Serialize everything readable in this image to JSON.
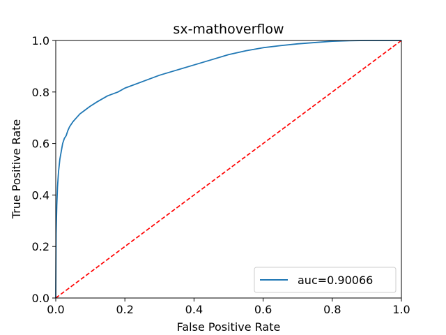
{
  "chart_data": {
    "type": "line",
    "title": "sx-mathoverflow",
    "xlabel": "False Positive Rate",
    "ylabel": "True Positive Rate",
    "xlim": [
      0.0,
      1.0
    ],
    "ylim": [
      0.0,
      1.0
    ],
    "xticks": [
      "0.0",
      "0.2",
      "0.4",
      "0.6",
      "0.8",
      "1.0"
    ],
    "yticks": [
      "0.0",
      "0.2",
      "0.4",
      "0.6",
      "0.8",
      "1.0"
    ],
    "grid": false,
    "legend_position": "lower-right",
    "series": [
      {
        "name": "auc=0.90066",
        "color": "#1f77b4",
        "style": "solid",
        "x": [
          0.0,
          0.001,
          0.003,
          0.005,
          0.008,
          0.012,
          0.016,
          0.02,
          0.025,
          0.03,
          0.035,
          0.04,
          0.045,
          0.05,
          0.06,
          0.07,
          0.08,
          0.1,
          0.12,
          0.15,
          0.18,
          0.2,
          0.25,
          0.3,
          0.35,
          0.4,
          0.45,
          0.5,
          0.55,
          0.6,
          0.65,
          0.7,
          0.75,
          0.8,
          0.85,
          0.9,
          0.95,
          1.0
        ],
        "y": [
          0.0,
          0.25,
          0.36,
          0.43,
          0.49,
          0.54,
          0.57,
          0.6,
          0.62,
          0.63,
          0.65,
          0.665,
          0.675,
          0.685,
          0.7,
          0.715,
          0.725,
          0.745,
          0.762,
          0.785,
          0.8,
          0.815,
          0.84,
          0.865,
          0.885,
          0.905,
          0.925,
          0.945,
          0.96,
          0.972,
          0.98,
          0.987,
          0.992,
          0.997,
          0.999,
          1.0,
          1.0,
          1.0
        ]
      },
      {
        "name": "",
        "color": "#ff0000",
        "style": "dashed",
        "x": [
          0.0,
          1.0
        ],
        "y": [
          0.0,
          1.0
        ]
      }
    ]
  }
}
